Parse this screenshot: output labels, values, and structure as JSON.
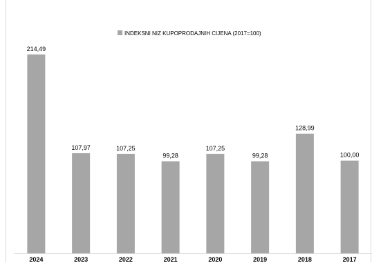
{
  "chart_data": {
    "type": "bar",
    "legend": "INDEKSNI NIZ KUPOPRODAJNIH CIJENA (2017=100)",
    "legend_position": "top-center",
    "categories": [
      "2024",
      "2023",
      "2022",
      "2021",
      "2020",
      "2019",
      "2018",
      "2017"
    ],
    "values": [
      214.49,
      107.97,
      107.25,
      99.28,
      107.25,
      99.28,
      128.99,
      100.0
    ],
    "data_labels": [
      "214,49",
      "107,97",
      "107,25",
      "99,28",
      "107,25",
      "99,28",
      "128,99",
      "100,00"
    ],
    "ylim": [
      0,
      230
    ],
    "grid": false,
    "bar_color": "#a6a6a6",
    "axis_color": "#d9d9d9"
  }
}
